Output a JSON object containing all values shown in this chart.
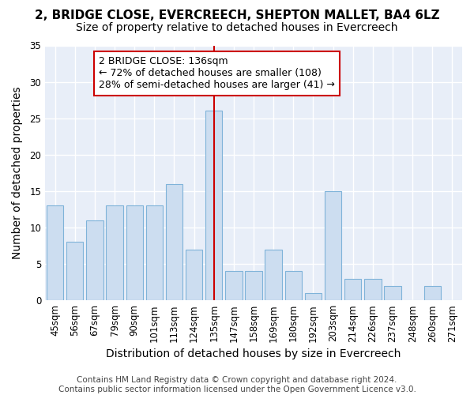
{
  "title": "2, BRIDGE CLOSE, EVERCREECH, SHEPTON MALLET, BA4 6LZ",
  "subtitle": "Size of property relative to detached houses in Evercreech",
  "xlabel": "Distribution of detached houses by size in Evercreech",
  "ylabel": "Number of detached properties",
  "categories": [
    "45sqm",
    "56sqm",
    "67sqm",
    "79sqm",
    "90sqm",
    "101sqm",
    "113sqm",
    "124sqm",
    "135sqm",
    "147sqm",
    "158sqm",
    "169sqm",
    "180sqm",
    "192sqm",
    "203sqm",
    "214sqm",
    "226sqm",
    "237sqm",
    "248sqm",
    "260sqm",
    "271sqm"
  ],
  "values": [
    13,
    8,
    11,
    13,
    13,
    13,
    16,
    7,
    26,
    4,
    4,
    7,
    4,
    1,
    15,
    3,
    3,
    2,
    0,
    2,
    0
  ],
  "bar_color": "#ccddf0",
  "bar_edge_color": "#7fb3d9",
  "highlight_index": 8,
  "highlight_line_color": "#cc0000",
  "annotation_text": "2 BRIDGE CLOSE: 136sqm\n← 72% of detached houses are smaller (108)\n28% of semi-detached houses are larger (41) →",
  "annotation_box_facecolor": "#ffffff",
  "annotation_box_edgecolor": "#cc0000",
  "ylim": [
    0,
    35
  ],
  "yticks": [
    0,
    5,
    10,
    15,
    20,
    25,
    30,
    35
  ],
  "footer_text": "Contains HM Land Registry data © Crown copyright and database right 2024.\nContains public sector information licensed under the Open Government Licence v3.0.",
  "fig_facecolor": "#ffffff",
  "axes_facecolor": "#e8eef8",
  "grid_color": "#ffffff",
  "title_fontsize": 11,
  "subtitle_fontsize": 10,
  "axis_label_fontsize": 10,
  "tick_fontsize": 8.5,
  "annotation_fontsize": 9,
  "footer_fontsize": 7.5
}
